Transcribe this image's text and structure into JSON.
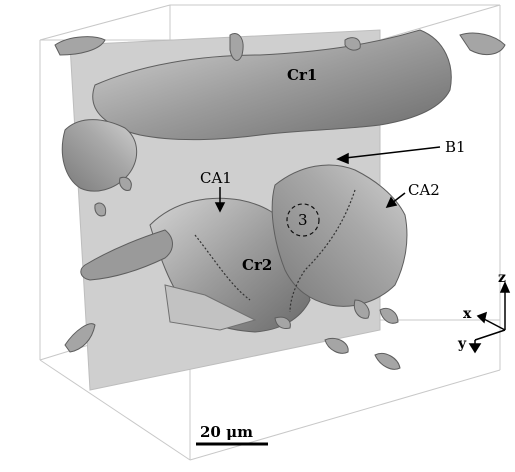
{
  "labels": {
    "cr1": "Cr1",
    "cr2": "Cr2",
    "b1": "B1",
    "ca1": "CA1",
    "ca2": "CA2",
    "region3": "3"
  },
  "axes": {
    "z": "z",
    "x": "x",
    "y": "y"
  },
  "scale_bar": {
    "label": "20 μm"
  },
  "colors": {
    "plane": "#cfcfcf",
    "surface": "#9a9a9a",
    "surface_light": "#c4c4c4",
    "surface_dark": "#6e6e6e",
    "box_edge": "#c8c8c8"
  }
}
